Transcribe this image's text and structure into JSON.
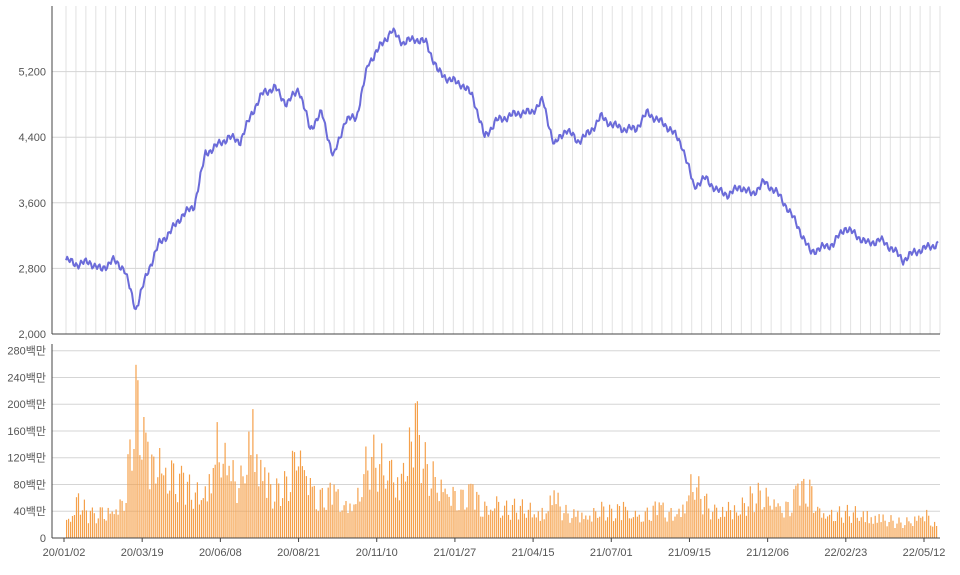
{
  "chart_data": [
    {
      "type": "line",
      "panel": "price",
      "title": "",
      "xlabel": "",
      "ylabel": "",
      "ylim": [
        2000,
        6000
      ],
      "y_ticks": [
        "2,000",
        "2,800",
        "3,600",
        "4,400",
        "5,200"
      ],
      "y_tick_values": [
        2000,
        2800,
        3600,
        4400,
        5200
      ],
      "grid": true,
      "color": "#6b6bd9",
      "series": [
        {
          "x": [
            "20/01/02",
            "20/01/16",
            "20/01/31",
            "20/02/14",
            "20/02/28",
            "20/03/10",
            "20/03/19",
            "20/03/24",
            "20/04/03",
            "20/04/20",
            "20/05/04",
            "20/05/19",
            "20/06/01",
            "20/06/08",
            "20/06/15",
            "20/06/29",
            "20/07/10",
            "20/07/20",
            "20/07/31",
            "20/08/10",
            "20/08/21",
            "20/08/31",
            "20/09/14",
            "20/09/28",
            "20/10/12",
            "20/10/26",
            "20/11/10",
            "20/11/20",
            "20/11/30",
            "20/12/04",
            "20/12/14",
            "20/12/21",
            "20/12/30",
            "21/01/08",
            "21/01/15",
            "21/01/27",
            "21/02/08",
            "21/02/15",
            "21/02/25",
            "21/03/10",
            "21/03/25",
            "21/04/08",
            "21/04/15",
            "21/04/26",
            "21/05/10",
            "21/05/24",
            "21/06/07",
            "21/06/21",
            "21/07/01",
            "21/07/12",
            "21/07/26",
            "21/08/09",
            "21/08/23",
            "21/09/01",
            "21/09/15",
            "21/09/27",
            "21/10/12",
            "21/10/25",
            "21/11/08",
            "21/11/22",
            "21/12/06",
            "21/12/13",
            "21/12/20",
            "21/12/30",
            "22/01/10",
            "22/01/24",
            "22/02/07",
            "22/02/23",
            "22/03/08",
            "22/03/22",
            "22/04/05",
            "22/04/19",
            "22/05/02",
            "22/05/12",
            "22/05/23",
            "22/05/31"
          ],
          "y": [
            2900,
            2850,
            2880,
            2780,
            2900,
            2800,
            2300,
            2750,
            3100,
            3250,
            3450,
            3550,
            4200,
            4300,
            4400,
            4350,
            4700,
            4950,
            5000,
            4800,
            5000,
            4500,
            4700,
            4150,
            4600,
            4650,
            5300,
            5500,
            5700,
            5550,
            5600,
            5550,
            5200,
            5100,
            5050,
            4900,
            4400,
            4600,
            4650,
            4700,
            4700,
            4850,
            4300,
            4500,
            4350,
            4450,
            4650,
            4550,
            4500,
            4500,
            4700,
            4600,
            4500,
            4300,
            3800,
            3900,
            3750,
            3700,
            3800,
            3700,
            3850,
            3750,
            3550,
            3300,
            3000,
            3050,
            3100,
            3300,
            3200,
            3100,
            3150,
            3050,
            2900,
            3000,
            3050,
            3100
          ]
        }
      ]
    },
    {
      "type": "bar",
      "panel": "volume",
      "title": "",
      "xlabel": "",
      "ylabel": "",
      "ylim": [
        0,
        290
      ],
      "y_ticks": [
        "0",
        "40백만",
        "80백만",
        "120백만",
        "160백만",
        "200백만",
        "240백만",
        "280백만"
      ],
      "y_tick_values": [
        0,
        40,
        80,
        120,
        160,
        200,
        240,
        280
      ],
      "grid": true,
      "bar_color": "#f5a04a",
      "categories": [
        "20/01/02",
        "20/01/16",
        "20/01/31",
        "20/02/14",
        "20/02/28",
        "20/03/10",
        "20/03/19",
        "20/03/24",
        "20/04/03",
        "20/04/20",
        "20/05/04",
        "20/05/19",
        "20/06/01",
        "20/06/08",
        "20/06/15",
        "20/06/29",
        "20/07/10",
        "20/07/20",
        "20/07/31",
        "20/08/10",
        "20/08/21",
        "20/08/31",
        "20/09/14",
        "20/09/28",
        "20/10/12",
        "20/10/26",
        "20/11/10",
        "20/11/20",
        "20/11/30",
        "20/12/04",
        "20/12/14",
        "20/12/21",
        "20/12/30",
        "21/01/08",
        "21/01/15",
        "21/01/27",
        "21/02/08",
        "21/02/15",
        "21/02/25",
        "21/03/10",
        "21/03/25",
        "21/04/08",
        "21/04/15",
        "21/04/26",
        "21/05/10",
        "21/05/24",
        "21/06/07",
        "21/06/21",
        "21/07/01",
        "21/07/12",
        "21/07/26",
        "21/08/09",
        "21/08/23",
        "21/09/01",
        "21/09/15",
        "21/09/27",
        "21/10/12",
        "21/10/25",
        "21/11/08",
        "21/11/22",
        "21/12/06",
        "21/12/13",
        "21/12/20",
        "21/12/30",
        "22/01/10",
        "22/01/24",
        "22/02/07",
        "22/02/23",
        "22/03/08",
        "22/03/22",
        "22/04/05",
        "22/04/19",
        "22/05/02",
        "22/05/12",
        "22/05/23",
        "22/05/31"
      ],
      "values": [
        30,
        75,
        45,
        50,
        60,
        80,
        280,
        160,
        150,
        130,
        110,
        90,
        100,
        200,
        120,
        110,
        220,
        120,
        90,
        110,
        200,
        100,
        80,
        90,
        70,
        80,
        160,
        150,
        130,
        120,
        230,
        140,
        120,
        100,
        80,
        90,
        60,
        70,
        60,
        60,
        60,
        50,
        80,
        50,
        45,
        50,
        60,
        50,
        60,
        45,
        50,
        60,
        50,
        60,
        120,
        70,
        50,
        60,
        60,
        80,
        90,
        80,
        60,
        90,
        100,
        55,
        50,
        50,
        50,
        45,
        40,
        35,
        30,
        40,
        55,
        20
      ],
      "x_tick_labels": [
        "20/01/02",
        "20/03/19",
        "20/06/08",
        "20/08/21",
        "20/11/10",
        "21/01/27",
        "21/04/15",
        "21/07/01",
        "21/09/15",
        "21/12/06",
        "22/02/23",
        "22/05/12"
      ]
    }
  ]
}
